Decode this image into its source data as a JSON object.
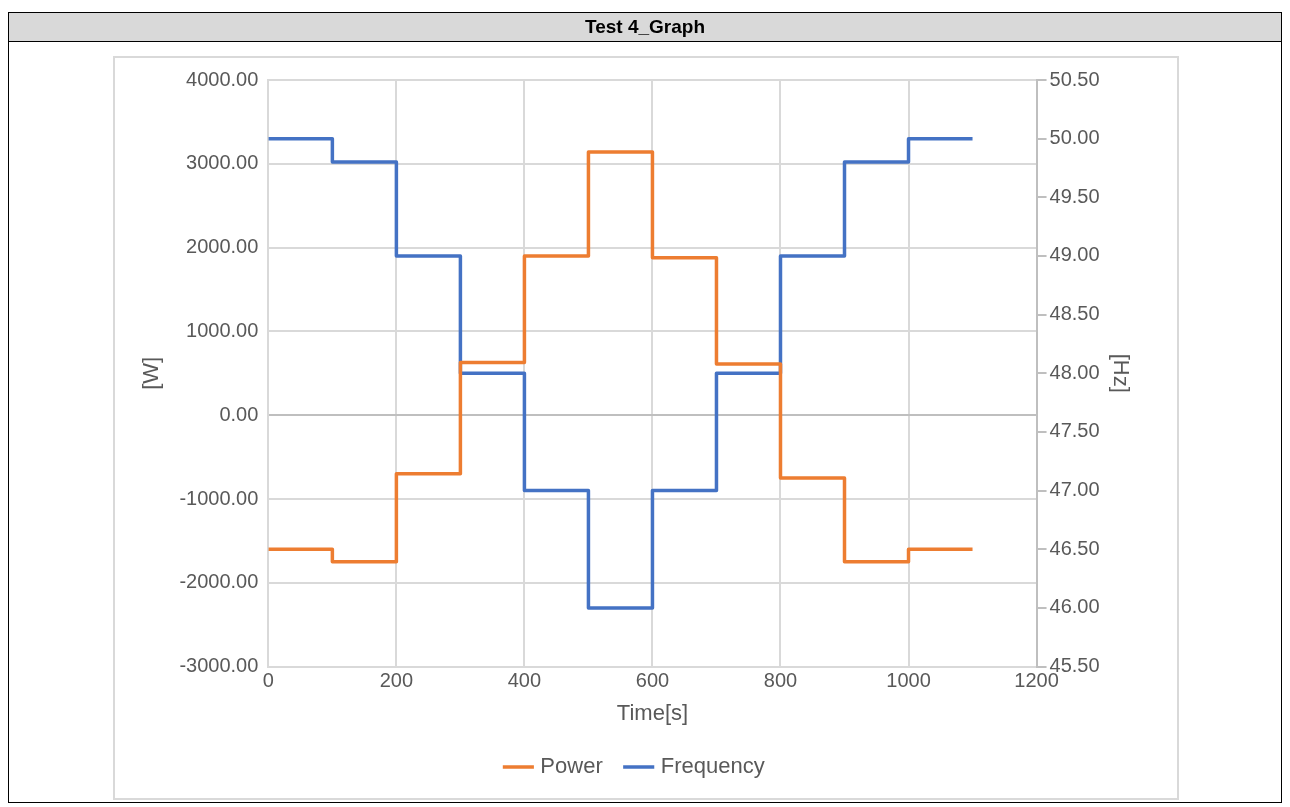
{
  "chart_data": {
    "type": "step",
    "title": "Test 4_Graph",
    "xlabel": "Time[s]",
    "ylabel": "[W]",
    "y2label": "[Hz]",
    "xlim": [
      0,
      1200
    ],
    "xticks": [
      0,
      200,
      400,
      600,
      800,
      1000,
      1200
    ],
    "ylim": [
      -3000,
      4000
    ],
    "yticks": [
      {
        "value": -3000,
        "label": "-3000.00"
      },
      {
        "value": -2000,
        "label": "-2000.00"
      },
      {
        "value": -1000,
        "label": "-1000.00"
      },
      {
        "value": 0,
        "label": "0.00"
      },
      {
        "value": 1000,
        "label": "1000.00"
      },
      {
        "value": 2000,
        "label": "2000.00"
      },
      {
        "value": 3000,
        "label": "3000.00"
      },
      {
        "value": 4000,
        "label": "4000.00"
      }
    ],
    "y2lim": [
      45.5,
      50.5
    ],
    "y2ticks": [
      {
        "value": 45.5,
        "label": "45.50"
      },
      {
        "value": 46,
        "label": "46.00"
      },
      {
        "value": 46.5,
        "label": "46.50"
      },
      {
        "value": 47,
        "label": "47.00"
      },
      {
        "value": 47.5,
        "label": "47.50"
      },
      {
        "value": 48,
        "label": "48.00"
      },
      {
        "value": 48.5,
        "label": "48.50"
      },
      {
        "value": 49,
        "label": "49.00"
      },
      {
        "value": 49.5,
        "label": "49.50"
      },
      {
        "value": 50,
        "label": "50.00"
      },
      {
        "value": 50.5,
        "label": "50.50"
      }
    ],
    "x": [
      0,
      100,
      200,
      300,
      400,
      500,
      600,
      700,
      800,
      900,
      1000,
      1100
    ],
    "series": [
      {
        "name": "Power",
        "color": "#ed7d31",
        "values": [
          -1600,
          -1750,
          -700,
          630,
          1900,
          3140,
          1880,
          610,
          -750,
          -1750,
          -1600,
          -1600
        ]
      },
      {
        "name": "Frequency",
        "color": "#4472c4",
        "axis": "y2",
        "values": [
          50,
          49.8,
          49,
          48,
          47,
          46,
          47,
          48,
          49,
          49.8,
          50,
          50
        ]
      }
    ],
    "grid": true,
    "legend": "bottom",
    "marker": "none",
    "line_style": "solid"
  }
}
